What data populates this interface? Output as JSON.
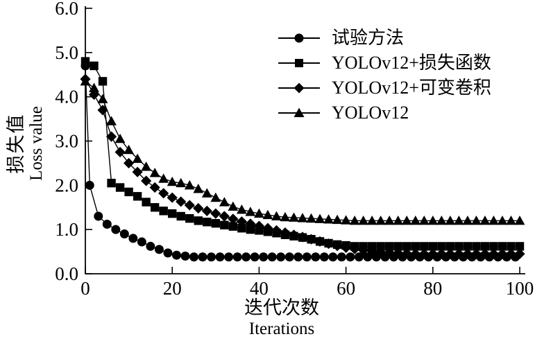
{
  "chart_data": {
    "type": "line",
    "title": "",
    "xlabel_zh": "迭代次数",
    "xlabel_en": "Iterations",
    "ylabel_zh": "损失值",
    "ylabel_en": "Loss value",
    "xlim": [
      0,
      100
    ],
    "ylim": [
      0,
      6
    ],
    "grid": false,
    "legend_position": "top-right-inside",
    "line_color": "#000000",
    "background": "#ffffff",
    "xticks": {
      "values": [
        0,
        20,
        40,
        60,
        80,
        100
      ],
      "labels": [
        "0",
        "20",
        "40",
        "60",
        "80",
        "100"
      ]
    },
    "yticks": {
      "values": [
        0,
        1,
        2,
        3,
        4,
        5,
        6
      ],
      "labels": [
        "0.0",
        "1.0",
        "2.0",
        "3.0",
        "4.0",
        "5.0",
        "6.0"
      ]
    },
    "series": [
      {
        "name": "试验方法",
        "marker": "circle",
        "x": [
          0,
          1,
          3,
          5,
          7,
          9,
          11,
          13,
          15,
          17,
          19,
          21,
          23,
          25,
          27,
          29,
          31,
          33,
          35,
          37,
          39,
          41,
          43,
          45,
          47,
          49,
          51,
          53,
          55,
          57,
          59,
          61,
          63,
          65,
          67,
          69,
          71,
          73,
          75,
          77,
          79,
          81,
          83,
          85,
          87,
          89,
          91,
          93,
          95,
          97,
          99
        ],
        "y": [
          4.7,
          2.0,
          1.3,
          1.12,
          1.0,
          0.9,
          0.8,
          0.72,
          0.62,
          0.55,
          0.47,
          0.42,
          0.4,
          0.38,
          0.38,
          0.38,
          0.38,
          0.38,
          0.38,
          0.38,
          0.38,
          0.38,
          0.38,
          0.38,
          0.38,
          0.38,
          0.38,
          0.38,
          0.38,
          0.38,
          0.38,
          0.38,
          0.38,
          0.38,
          0.38,
          0.38,
          0.38,
          0.38,
          0.38,
          0.38,
          0.38,
          0.38,
          0.38,
          0.38,
          0.38,
          0.38,
          0.38,
          0.38,
          0.38,
          0.38,
          0.38
        ]
      },
      {
        "name": "YOLOv12+损失函数",
        "marker": "square",
        "x": [
          0,
          2,
          4,
          6,
          8,
          10,
          12,
          14,
          16,
          18,
          20,
          22,
          24,
          26,
          28,
          30,
          32,
          34,
          36,
          38,
          40,
          42,
          44,
          46,
          48,
          50,
          52,
          54,
          56,
          58,
          60,
          62,
          64,
          66,
          68,
          70,
          72,
          74,
          76,
          78,
          80,
          82,
          84,
          86,
          88,
          90,
          92,
          94,
          96,
          98,
          100
        ],
        "y": [
          4.8,
          4.7,
          4.35,
          2.05,
          1.95,
          1.85,
          1.75,
          1.62,
          1.5,
          1.42,
          1.36,
          1.3,
          1.25,
          1.2,
          1.17,
          1.14,
          1.1,
          1.07,
          1.03,
          1.0,
          0.98,
          0.95,
          0.92,
          0.88,
          0.85,
          0.82,
          0.78,
          0.73,
          0.69,
          0.66,
          0.64,
          0.62,
          0.62,
          0.62,
          0.62,
          0.62,
          0.62,
          0.62,
          0.62,
          0.62,
          0.62,
          0.62,
          0.62,
          0.62,
          0.62,
          0.62,
          0.62,
          0.62,
          0.62,
          0.62,
          0.62
        ]
      },
      {
        "name": "YOLOv12+可变卷积",
        "marker": "diamond",
        "x": [
          0,
          2,
          4,
          6,
          8,
          10,
          12,
          14,
          16,
          18,
          20,
          22,
          24,
          26,
          28,
          30,
          32,
          34,
          36,
          38,
          40,
          42,
          44,
          46,
          48,
          50,
          52,
          54,
          56,
          58,
          60,
          62,
          64,
          66,
          68,
          70,
          72,
          74,
          76,
          78,
          80,
          82,
          84,
          86,
          88,
          90,
          92,
          94,
          96,
          98,
          100
        ],
        "y": [
          4.4,
          4.05,
          3.7,
          3.1,
          2.75,
          2.5,
          2.3,
          2.1,
          1.95,
          1.82,
          1.72,
          1.63,
          1.55,
          1.48,
          1.42,
          1.36,
          1.3,
          1.24,
          1.18,
          1.13,
          1.08,
          1.03,
          0.98,
          0.93,
          0.88,
          0.83,
          0.78,
          0.73,
          0.68,
          0.63,
          0.59,
          0.56,
          0.53,
          0.51,
          0.49,
          0.48,
          0.47,
          0.46,
          0.45,
          0.45,
          0.45,
          0.45,
          0.45,
          0.45,
          0.45,
          0.45,
          0.45,
          0.45,
          0.45,
          0.45,
          0.45
        ]
      },
      {
        "name": "YOLOv12",
        "marker": "triangle",
        "x": [
          0,
          2,
          4,
          6,
          8,
          10,
          12,
          14,
          16,
          18,
          20,
          22,
          24,
          26,
          28,
          30,
          32,
          34,
          36,
          38,
          40,
          42,
          44,
          46,
          48,
          50,
          52,
          54,
          56,
          58,
          60,
          62,
          64,
          66,
          68,
          70,
          72,
          74,
          76,
          78,
          80,
          82,
          84,
          86,
          88,
          90,
          92,
          94,
          96,
          98,
          100
        ],
        "y": [
          4.35,
          4.2,
          3.95,
          3.45,
          3.05,
          2.8,
          2.6,
          2.42,
          2.28,
          2.15,
          2.08,
          2.05,
          2.0,
          1.92,
          1.82,
          1.72,
          1.62,
          1.52,
          1.45,
          1.4,
          1.36,
          1.33,
          1.3,
          1.28,
          1.27,
          1.26,
          1.25,
          1.24,
          1.23,
          1.22,
          1.21,
          1.2,
          1.2,
          1.2,
          1.2,
          1.2,
          1.2,
          1.2,
          1.2,
          1.2,
          1.2,
          1.2,
          1.2,
          1.2,
          1.2,
          1.2,
          1.2,
          1.2,
          1.2,
          1.2,
          1.2
        ]
      }
    ]
  }
}
